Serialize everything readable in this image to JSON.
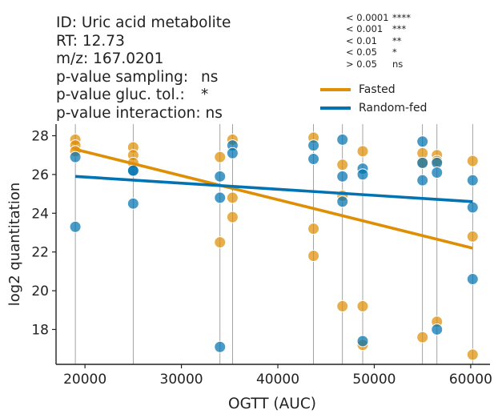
{
  "info": {
    "id_text": "ID: Uric acid metabolite",
    "rt_text": "RT: 12.73",
    "mz_text": "m/z: 167.0201",
    "pvalues": [
      {
        "label": "p-value sampling:",
        "value": "ns"
      },
      {
        "label": "p-value gluc. tol.:",
        "value": "*"
      },
      {
        "label": "p-value interaction:",
        "value": "ns"
      }
    ]
  },
  "significance_key": [
    {
      "threshold": "< 0.0001",
      "symbol": "****"
    },
    {
      "threshold": "< 0.001",
      "symbol": "***"
    },
    {
      "threshold": "< 0.01",
      "symbol": "**"
    },
    {
      "threshold": "< 0.05",
      "symbol": "*"
    },
    {
      "threshold": "> 0.05",
      "symbol": "ns"
    }
  ],
  "colors": {
    "fasted": "#de8f05",
    "random_fed": "#0173b2",
    "vline": "#8c8c8c",
    "axis": "#222222"
  },
  "chart_data": {
    "type": "scatter",
    "xlabel": "OGTT (AUC)",
    "ylabel": "log2 quantitation",
    "xlim": [
      17000,
      62000
    ],
    "ylim": [
      16.2,
      28.6
    ],
    "xticks": [
      20000,
      30000,
      40000,
      50000,
      60000
    ],
    "yticks": [
      18,
      20,
      22,
      24,
      26,
      28
    ],
    "grid": false,
    "legend_position": "upper-right",
    "vertical_lines_x": [
      19000,
      25000,
      34000,
      35300,
      43700,
      46700,
      48800,
      55000,
      56500,
      60200
    ],
    "series": [
      {
        "name": "Fasted",
        "color": "#de8f05",
        "points": [
          [
            19000,
            27.8
          ],
          [
            19000,
            27.5
          ],
          [
            19000,
            27.2
          ],
          [
            25000,
            27.4
          ],
          [
            25000,
            27.0
          ],
          [
            25000,
            26.6
          ],
          [
            34000,
            26.9
          ],
          [
            34000,
            22.5
          ],
          [
            35300,
            27.8
          ],
          [
            35300,
            24.8
          ],
          [
            35300,
            23.8
          ],
          [
            43700,
            27.9
          ],
          [
            43700,
            23.2
          ],
          [
            43700,
            21.8
          ],
          [
            46700,
            26.5
          ],
          [
            46700,
            24.9
          ],
          [
            46700,
            19.2
          ],
          [
            48800,
            27.2
          ],
          [
            48800,
            19.2
          ],
          [
            48800,
            17.2
          ],
          [
            55000,
            27.1
          ],
          [
            55000,
            26.6
          ],
          [
            55000,
            17.6
          ],
          [
            56500,
            27.0
          ],
          [
            56500,
            26.7
          ],
          [
            56500,
            18.4
          ],
          [
            60200,
            26.7
          ],
          [
            60200,
            22.8
          ],
          [
            60200,
            16.7
          ]
        ],
        "fit": [
          [
            19000,
            27.3
          ],
          [
            60200,
            22.2
          ]
        ]
      },
      {
        "name": "Random-fed",
        "color": "#0173b2",
        "points": [
          [
            19000,
            26.9
          ],
          [
            19000,
            23.3
          ],
          [
            25000,
            26.2
          ],
          [
            25000,
            26.2
          ],
          [
            25000,
            24.5
          ],
          [
            34000,
            25.9
          ],
          [
            34000,
            24.8
          ],
          [
            34000,
            17.1
          ],
          [
            35300,
            27.5
          ],
          [
            35300,
            27.1
          ],
          [
            43700,
            27.5
          ],
          [
            43700,
            26.8
          ],
          [
            46700,
            27.8
          ],
          [
            46700,
            25.9
          ],
          [
            46700,
            24.6
          ],
          [
            48800,
            26.3
          ],
          [
            48800,
            26.0
          ],
          [
            48800,
            17.4
          ],
          [
            55000,
            27.7
          ],
          [
            55000,
            26.6
          ],
          [
            55000,
            25.7
          ],
          [
            56500,
            26.6
          ],
          [
            56500,
            26.1
          ],
          [
            56500,
            18.0
          ],
          [
            60200,
            25.7
          ],
          [
            60200,
            24.3
          ],
          [
            60200,
            20.6
          ]
        ],
        "fit": [
          [
            19000,
            25.9
          ],
          [
            60200,
            24.6
          ]
        ]
      }
    ]
  }
}
